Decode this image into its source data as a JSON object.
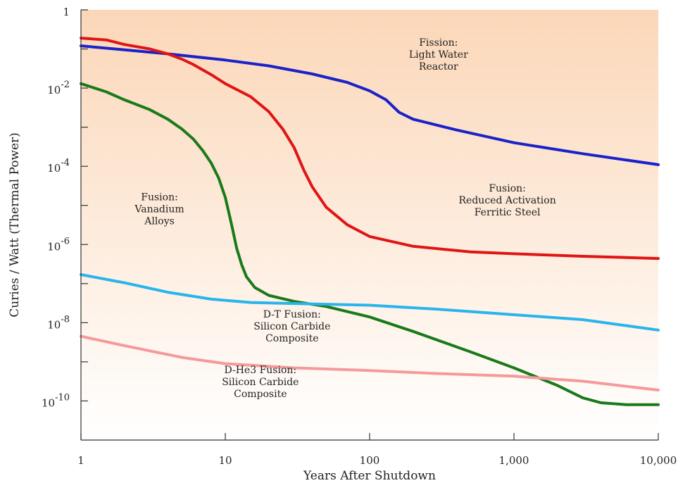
{
  "chart_data": {
    "type": "line",
    "title": "",
    "xlabel": "Years After Shutdown",
    "ylabel": "Curies / Watt (Thermal Power)",
    "xscale": "log",
    "yscale": "log",
    "xlim": [
      1,
      10000
    ],
    "ylim": [
      1e-11,
      1
    ],
    "x_ticks": [
      {
        "value": 1,
        "label": "1"
      },
      {
        "value": 10,
        "label": "10"
      },
      {
        "value": 100,
        "label": "100"
      },
      {
        "value": 1000,
        "label": "1,000"
      },
      {
        "value": 10000,
        "label": "10,000"
      }
    ],
    "y_ticks": [
      {
        "value": 1,
        "base": "1",
        "exp": ""
      },
      {
        "value": 0.01,
        "base": "10",
        "exp": "-2"
      },
      {
        "value": 0.0001,
        "base": "10",
        "exp": "-4"
      },
      {
        "value": 1e-06,
        "base": "10",
        "exp": "-6"
      },
      {
        "value": 1e-08,
        "base": "10",
        "exp": "-8"
      },
      {
        "value": 1e-10,
        "base": "10",
        "exp": "-10"
      }
    ],
    "y_minor_ticks": [
      0.1,
      0.001,
      1e-05,
      1e-07,
      1e-09
    ],
    "grid": false,
    "legend": "none",
    "background_gradient": {
      "top": "#fbd7b8",
      "bottom": "#ffffff"
    },
    "series": [
      {
        "name": "Fission: Light Water Reactor",
        "color": "#1a22c8",
        "points": [
          [
            1,
            0.12
          ],
          [
            2,
            0.095
          ],
          [
            4,
            0.075
          ],
          [
            10,
            0.052
          ],
          [
            20,
            0.037
          ],
          [
            40,
            0.023
          ],
          [
            70,
            0.014
          ],
          [
            100,
            0.0085
          ],
          [
            130,
            0.005
          ],
          [
            160,
            0.0024
          ],
          [
            200,
            0.0016
          ],
          [
            400,
            0.00085
          ],
          [
            1000,
            0.0004
          ],
          [
            3000,
            0.00021
          ],
          [
            10000,
            0.00011
          ]
        ]
      },
      {
        "name": "Fusion: Reduced Activation Ferritic Steel",
        "color": "#e01515",
        "points": [
          [
            1,
            0.19
          ],
          [
            1.5,
            0.17
          ],
          [
            2,
            0.13
          ],
          [
            3,
            0.1
          ],
          [
            4,
            0.075
          ],
          [
            5,
            0.055
          ],
          [
            6,
            0.04
          ],
          [
            8,
            0.022
          ],
          [
            10,
            0.013
          ],
          [
            15,
            0.006
          ],
          [
            20,
            0.0025
          ],
          [
            25,
            0.0009
          ],
          [
            30,
            0.0003
          ],
          [
            35,
            8e-05
          ],
          [
            40,
            3e-05
          ],
          [
            50,
            9e-06
          ],
          [
            70,
            3.2e-06
          ],
          [
            100,
            1.6e-06
          ],
          [
            200,
            9e-07
          ],
          [
            500,
            6.5e-07
          ],
          [
            1000,
            5.8e-07
          ],
          [
            3000,
            5e-07
          ],
          [
            10000,
            4.4e-07
          ]
        ]
      },
      {
        "name": "Fusion: Vanadium Alloys",
        "color": "#1a7a1a",
        "points": [
          [
            1,
            0.013
          ],
          [
            1.5,
            0.008
          ],
          [
            2,
            0.005
          ],
          [
            3,
            0.0028
          ],
          [
            4,
            0.0016
          ],
          [
            5,
            0.0009
          ],
          [
            6,
            0.0005
          ],
          [
            7,
            0.00025
          ],
          [
            8,
            0.00012
          ],
          [
            9,
            5e-05
          ],
          [
            10,
            1.6e-05
          ],
          [
            11,
            3.5e-06
          ],
          [
            12,
            8e-07
          ],
          [
            13,
            3e-07
          ],
          [
            14,
            1.5e-07
          ],
          [
            16,
            8e-08
          ],
          [
            20,
            5e-08
          ],
          [
            30,
            3.5e-08
          ],
          [
            50,
            2.6e-08
          ],
          [
            100,
            1.4e-08
          ],
          [
            200,
            6e-09
          ],
          [
            500,
            1.8e-09
          ],
          [
            1000,
            7e-10
          ],
          [
            2000,
            2.5e-10
          ],
          [
            3000,
            1.2e-10
          ],
          [
            4000,
            9e-11
          ],
          [
            6000,
            8e-11
          ],
          [
            10000,
            8e-11
          ]
        ]
      },
      {
        "name": "D-T Fusion: Silicon Carbide Composite",
        "color": "#29b5ec",
        "points": [
          [
            1,
            1.7e-07
          ],
          [
            2,
            1.05e-07
          ],
          [
            4,
            6e-08
          ],
          [
            8,
            4e-08
          ],
          [
            15,
            3.3e-08
          ],
          [
            30,
            3.1e-08
          ],
          [
            100,
            2.8e-08
          ],
          [
            300,
            2.2e-08
          ],
          [
            1000,
            1.6e-08
          ],
          [
            3000,
            1.2e-08
          ],
          [
            10000,
            6.5e-09
          ]
        ]
      },
      {
        "name": "D-He3 Fusion: Silicon Carbide Composite",
        "color": "#f59a9a",
        "points": [
          [
            1,
            4.5e-09
          ],
          [
            2,
            2.6e-09
          ],
          [
            5,
            1.3e-09
          ],
          [
            10,
            9e-10
          ],
          [
            30,
            7e-10
          ],
          [
            100,
            6e-10
          ],
          [
            300,
            5e-10
          ],
          [
            1000,
            4.3e-10
          ],
          [
            3000,
            3.2e-10
          ],
          [
            10000,
            1.9e-10
          ]
        ]
      }
    ],
    "annotations": [
      {
        "lines": [
          "Fission:",
          "Light Water",
          "Reactor"
        ],
        "x": 300,
        "y": 0.12
      },
      {
        "lines": [
          "Fusion:",
          "Reduced Activation",
          "Ferritic Steel"
        ],
        "x": 900,
        "y": 2.25e-05
      },
      {
        "lines": [
          "Fusion:",
          "Vanadium",
          "Alloys"
        ],
        "x": 3.5,
        "y": 1.35e-05
      },
      {
        "lines": [
          "D-T Fusion:",
          "Silicon Carbide",
          "Composite"
        ],
        "x": 29,
        "y": 1.35e-08
      },
      {
        "lines": [
          "D-He3 Fusion:",
          "Silicon Carbide",
          "Composite"
        ],
        "x": 17.5,
        "y": 5.1e-10
      }
    ]
  }
}
